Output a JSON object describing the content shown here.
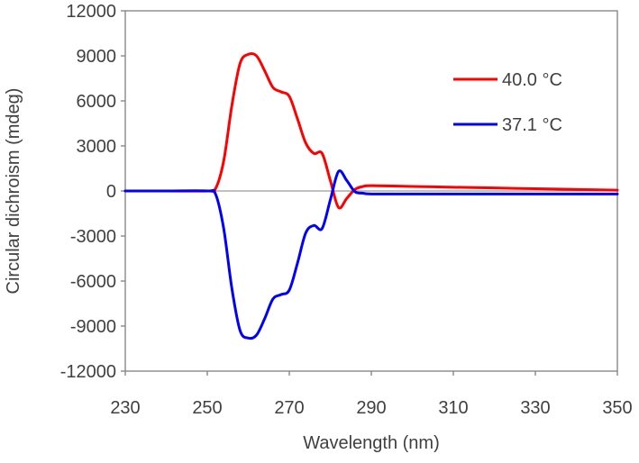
{
  "chart_data": {
    "type": "line",
    "title": "",
    "xlabel": "Wavelength (nm)",
    "ylabel": "Circular dichroism (mdeg)",
    "xlim": [
      230,
      350
    ],
    "ylim": [
      -12000,
      12000
    ],
    "x_ticks": [
      230,
      250,
      270,
      290,
      310,
      330,
      350
    ],
    "y_ticks": [
      12000,
      9000,
      6000,
      3000,
      0,
      -3000,
      -6000,
      -9000,
      -12000
    ],
    "grid": false,
    "legend_position": "top-right",
    "series": [
      {
        "name": "40.0 °C",
        "color": "#ff0000",
        "x": [
          230,
          240,
          250,
          252,
          254,
          256,
          258,
          260,
          262,
          264,
          266,
          268,
          270,
          272,
          274,
          276,
          278,
          280,
          282,
          284,
          286,
          288,
          290,
          300,
          310,
          320,
          330,
          340,
          350
        ],
        "y": [
          0,
          0,
          0,
          150,
          2000,
          5700,
          8500,
          9100,
          9000,
          8000,
          6900,
          6600,
          6300,
          4800,
          3200,
          2500,
          2500,
          700,
          -1100,
          -500,
          100,
          300,
          350,
          300,
          250,
          200,
          150,
          100,
          50
        ]
      },
      {
        "name": "37.1 °C",
        "color": "#0000ff",
        "x": [
          230,
          240,
          250,
          252,
          254,
          256,
          258,
          260,
          262,
          264,
          266,
          268,
          270,
          272,
          274,
          276,
          278,
          280,
          282,
          284,
          286,
          288,
          290,
          300,
          310,
          320,
          330,
          340,
          350
        ],
        "y": [
          0,
          0,
          0,
          -200,
          -2500,
          -6500,
          -9300,
          -9800,
          -9600,
          -8500,
          -7200,
          -6900,
          -6600,
          -4800,
          -2800,
          -2300,
          -2500,
          -600,
          1300,
          700,
          -50,
          -150,
          -200,
          -200,
          -200,
          -200,
          -200,
          -200,
          -200
        ]
      }
    ]
  }
}
